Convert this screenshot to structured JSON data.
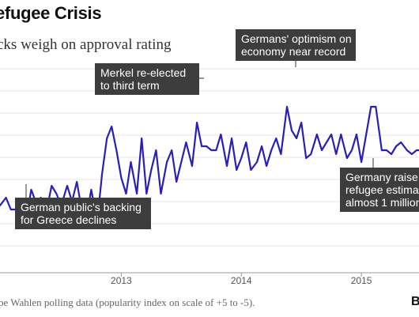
{
  "header": {
    "title": "efugee Crisis",
    "subtitle": "cks weigh on approval rating"
  },
  "footer": {
    "source": "pe Wahlen polling data (popularity index on scale of +5 to -5).",
    "brand": "B"
  },
  "colors": {
    "line": "#2a1fb5",
    "annotation_bg": "#3d3d3d",
    "grid": "#e6e6e6",
    "axis": "#999999"
  },
  "chart_data": {
    "type": "line",
    "title": "efugee Crisis",
    "subtitle": "cks weigh on approval rating",
    "xlabel": "",
    "ylabel": "",
    "x_tick_labels": [
      "2013",
      "2014",
      "2015"
    ],
    "x_ticks": [
      2013.0,
      2014.0,
      2015.0
    ],
    "xlim": [
      2011.99,
      2015.48
    ],
    "ylim": [
      0.0,
      2.6
    ],
    "grid": true,
    "series": [
      {
        "name": "",
        "x": [
          2011.99,
          2012.04,
          2012.08,
          2012.13,
          2012.17,
          2012.21,
          2012.25,
          2012.3,
          2012.33,
          2012.38,
          2012.42,
          2012.46,
          2012.5,
          2012.55,
          2012.59,
          2012.63,
          2012.67,
          2012.71,
          2012.75,
          2012.8,
          2012.84,
          2012.88,
          2012.92,
          2012.96,
          2013.0,
          2013.04,
          2013.08,
          2013.13,
          2013.17,
          2013.21,
          2013.25,
          2013.29,
          2013.33,
          2013.38,
          2013.42,
          2013.46,
          2013.5,
          2013.54,
          2013.59,
          2013.63,
          2013.67,
          2013.71,
          2013.75,
          2013.79,
          2013.83,
          2013.88,
          2013.92,
          2013.96,
          2014.0,
          2014.04,
          2014.08,
          2014.13,
          2014.17,
          2014.21,
          2014.25,
          2014.29,
          2014.33,
          2014.38,
          2014.42,
          2014.46,
          2014.5,
          2014.54,
          2014.58,
          2014.63,
          2014.67,
          2014.71,
          2014.75,
          2014.79,
          2014.83,
          2014.88,
          2014.92,
          2014.96,
          2015.0,
          2015.04,
          2015.08,
          2015.12,
          2015.17,
          2015.21,
          2015.25,
          2015.29,
          2015.33,
          2015.38,
          2015.42,
          2015.46,
          2015.48
        ],
        "values": [
          0.85,
          0.95,
          0.8,
          0.8,
          0.6,
          0.7,
          1.05,
          0.85,
          0.95,
          0.8,
          1.1,
          1.0,
          0.85,
          1.1,
          0.9,
          1.15,
          0.8,
          0.7,
          1.05,
          0.65,
          1.25,
          1.7,
          1.85,
          1.55,
          1.2,
          1.0,
          1.4,
          1.0,
          1.7,
          1.0,
          1.3,
          1.55,
          1.0,
          1.4,
          1.55,
          1.15,
          1.4,
          1.65,
          1.35,
          1.9,
          1.6,
          1.6,
          1.55,
          1.55,
          1.75,
          1.35,
          1.7,
          1.3,
          1.45,
          1.65,
          1.3,
          1.4,
          1.6,
          1.35,
          1.55,
          1.7,
          1.5,
          2.1,
          1.8,
          1.7,
          1.9,
          1.45,
          1.5,
          1.75,
          1.55,
          1.65,
          1.75,
          1.5,
          1.75,
          1.45,
          1.55,
          1.75,
          1.4,
          1.75,
          2.1,
          2.1,
          1.55,
          1.55,
          1.5,
          1.6,
          1.65,
          1.55,
          1.5,
          1.55,
          1.55
        ]
      }
    ],
    "annotations": [
      {
        "lines": [
          "German public's backing",
          "for Greece declines"
        ]
      },
      {
        "lines": [
          "Merkel re-elected",
          "to third term"
        ]
      },
      {
        "lines": [
          "Germans' optimism on",
          "economy near record"
        ]
      },
      {
        "lines": [
          "Germany raise",
          "refugee estima",
          "almost 1 million"
        ]
      }
    ]
  }
}
